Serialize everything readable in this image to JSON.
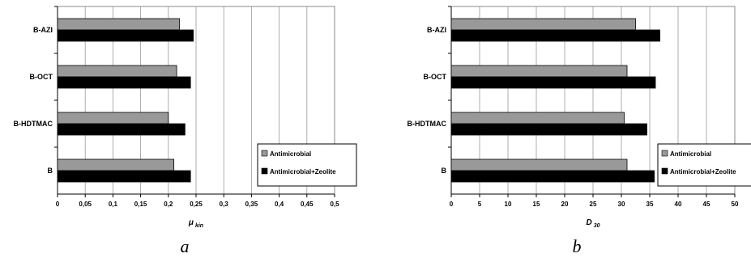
{
  "chart_data": [
    {
      "type": "bar",
      "orientation": "horizontal",
      "panel_label": "a",
      "categories": [
        "B-AZI",
        "B-OCT",
        "B-HDTMAC",
        "B"
      ],
      "series": [
        {
          "name": "Antimicrobial",
          "values": [
            0.22,
            0.215,
            0.2,
            0.21
          ]
        },
        {
          "name": "Antimicrobial+Zeolite",
          "values": [
            0.245,
            0.24,
            0.23,
            0.24
          ]
        }
      ],
      "xlabel": "μ",
      "xlabel_sub": "kin",
      "xlim": [
        0,
        0.5
      ],
      "xticks": [
        "0",
        "0,05",
        "0,1",
        "0,15",
        "0,2",
        "0,25",
        "0,3",
        "0,35",
        "0,4",
        "0,45",
        "0,5"
      ],
      "grid": "vertical",
      "legend_position": "bottom-right",
      "colors": {
        "Antimicrobial": "#999999",
        "Antimicrobial+Zeolite": "#000000"
      }
    },
    {
      "type": "bar",
      "orientation": "horizontal",
      "panel_label": "b",
      "categories": [
        "B-AZI",
        "B-OCT",
        "B-HDTMAC",
        "B"
      ],
      "series": [
        {
          "name": "Antimicrobial",
          "values": [
            32.5,
            31,
            30.5,
            31
          ]
        },
        {
          "name": "Antimicrobial+Zeolite",
          "values": [
            36.8,
            36,
            34.5,
            35.8
          ]
        }
      ],
      "xlabel": "D",
      "xlabel_sub": "30",
      "xlim": [
        0,
        50
      ],
      "xticks": [
        "0",
        "5",
        "10",
        "15",
        "20",
        "25",
        "30",
        "35",
        "40",
        "45",
        "50"
      ],
      "grid": "vertical",
      "legend_position": "bottom-right",
      "colors": {
        "Antimicrobial": "#999999",
        "Antimicrobial+Zeolite": "#000000"
      }
    }
  ]
}
